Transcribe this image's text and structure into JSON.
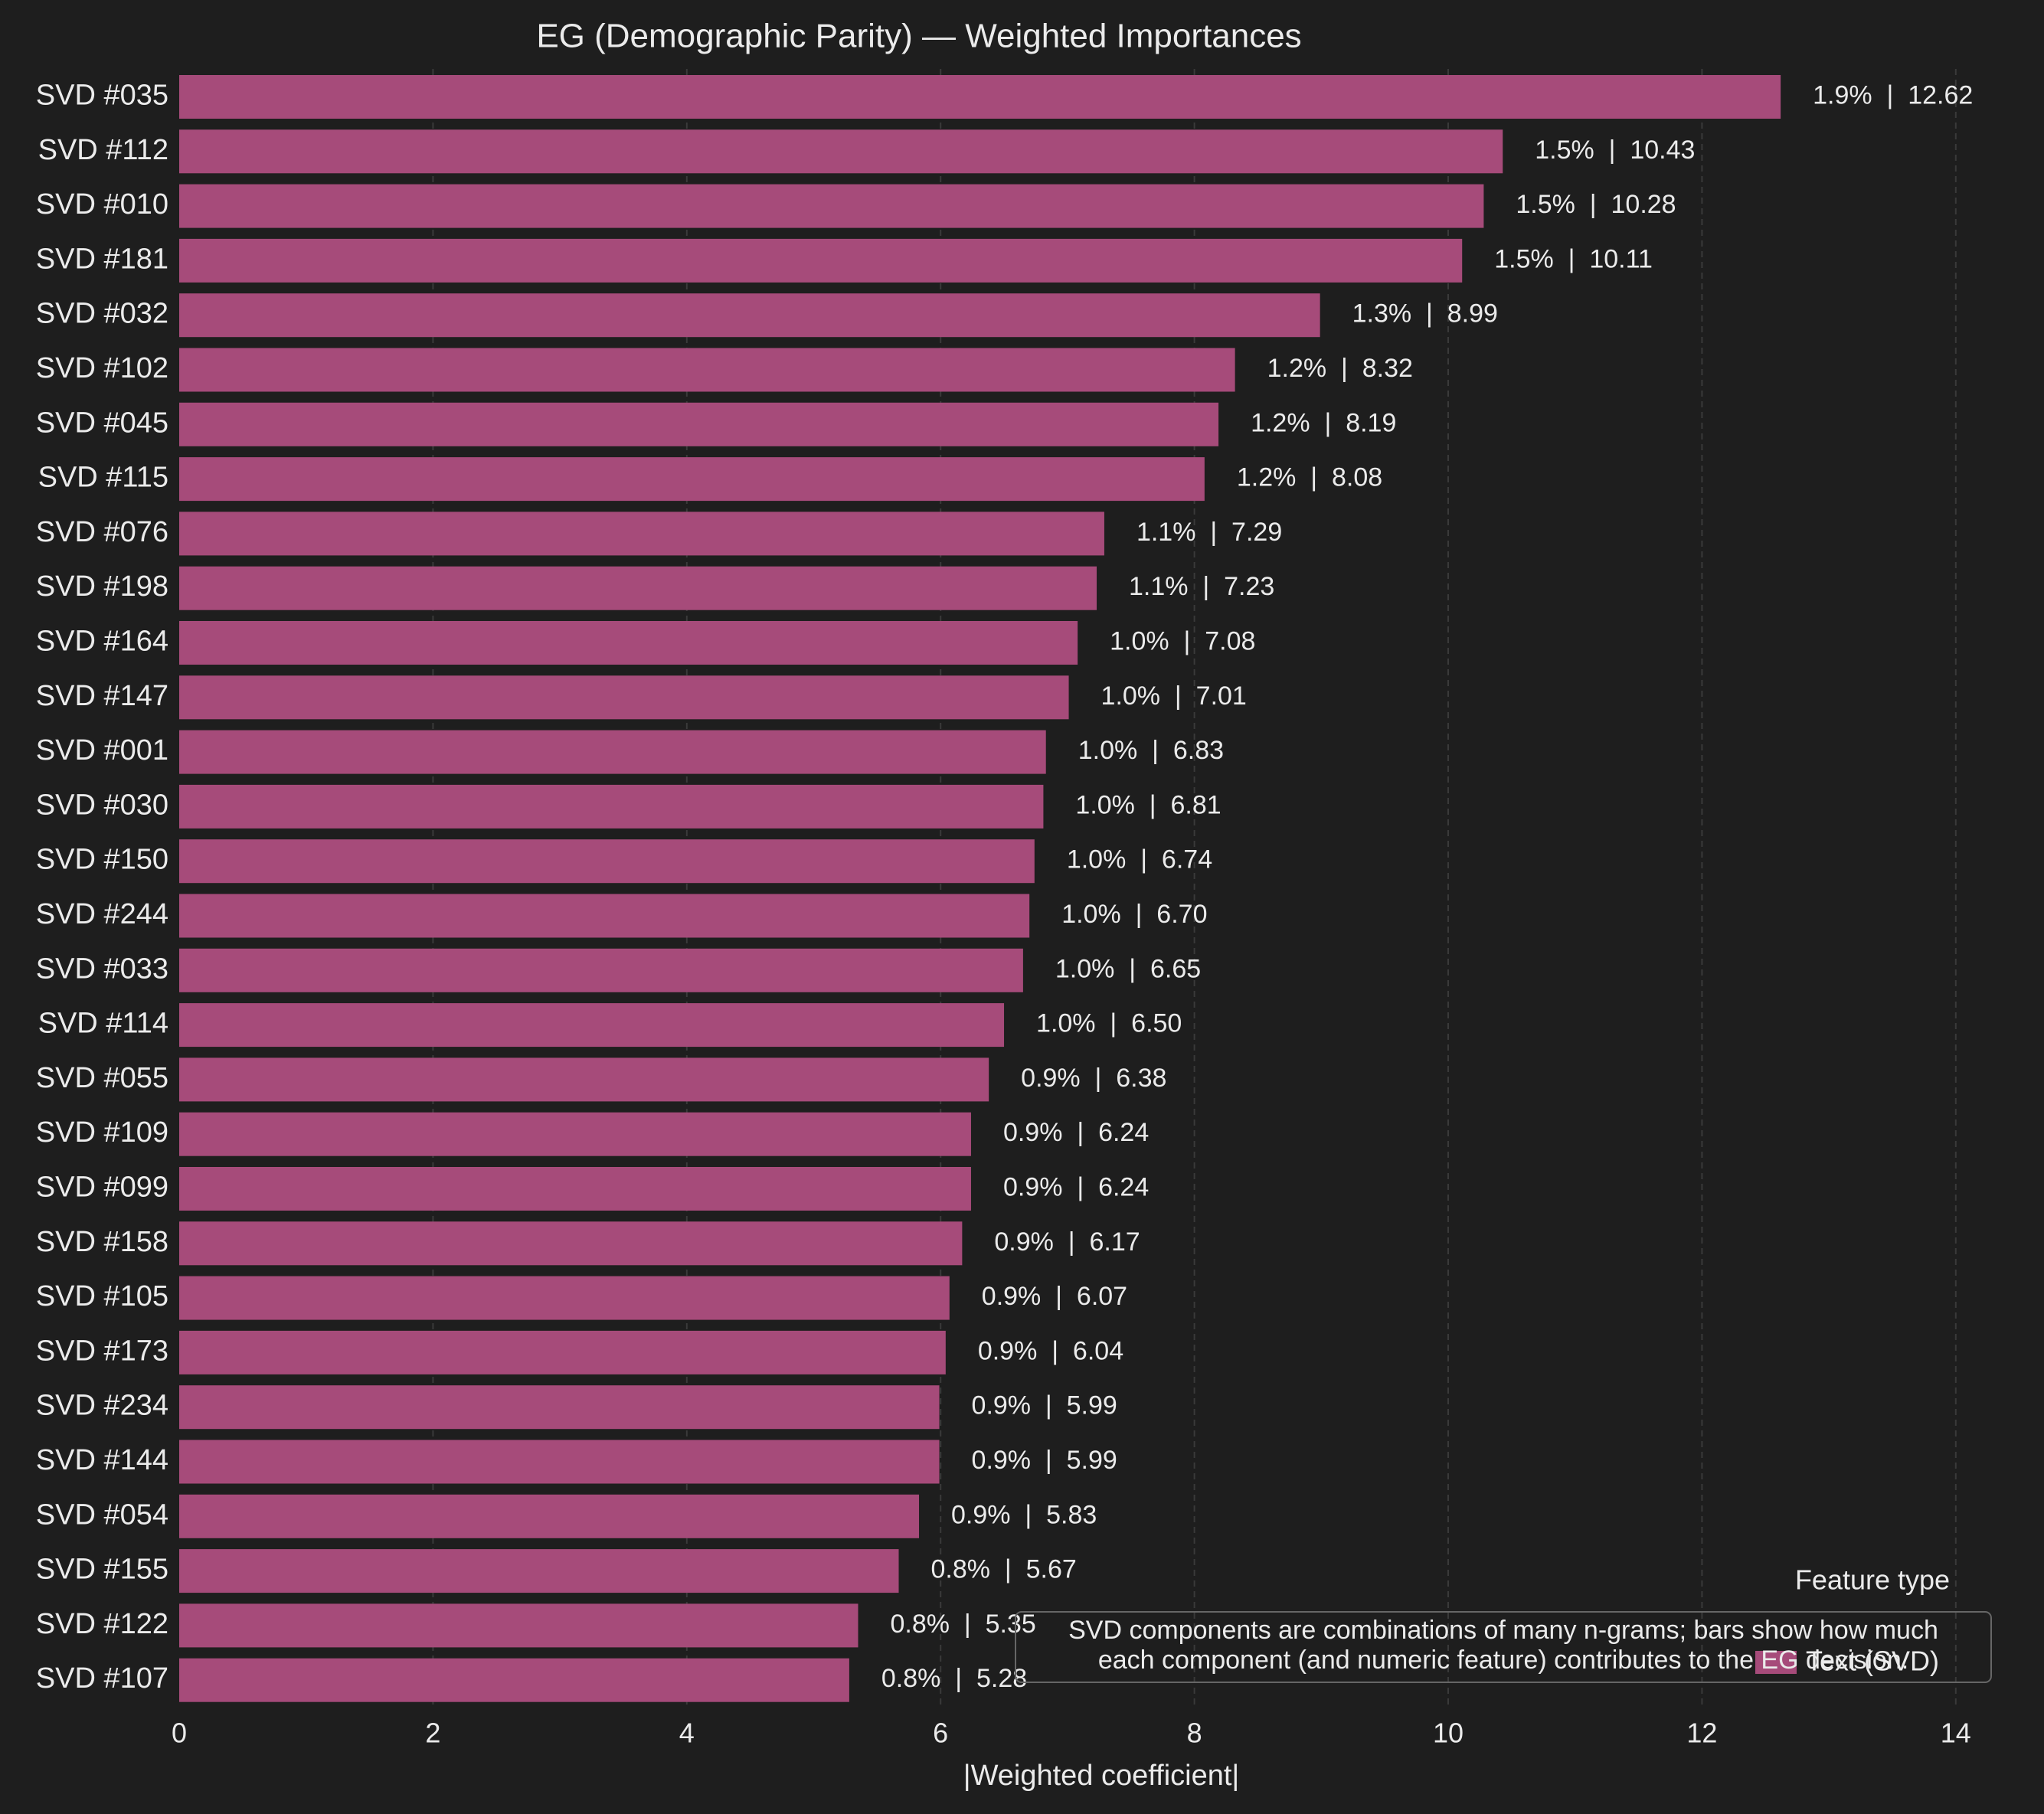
{
  "colors": {
    "background": "#1e1e1e",
    "bar": "#a64b7a",
    "text": "#ebebeb",
    "grid": "#3a3a3a",
    "annotation_border": "#666666"
  },
  "chart_data": {
    "type": "bar",
    "orientation": "horizontal",
    "title": "EG (Demographic Parity) — Weighted Importances",
    "xlabel": "|Weighted coefficient|",
    "ylabel": "",
    "xlim": [
      0,
      14.3
    ],
    "xticks": [
      0,
      2,
      4,
      6,
      8,
      10,
      12,
      14
    ],
    "grid": "vertical dashed",
    "categories": [
      "SVD #035",
      "SVD #112",
      "SVD #010",
      "SVD #181",
      "SVD #032",
      "SVD #102",
      "SVD #045",
      "SVD #115",
      "SVD #076",
      "SVD #198",
      "SVD #164",
      "SVD #147",
      "SVD #001",
      "SVD #030",
      "SVD #150",
      "SVD #244",
      "SVD #033",
      "SVD #114",
      "SVD #055",
      "SVD #109",
      "SVD #099",
      "SVD #158",
      "SVD #105",
      "SVD #173",
      "SVD #234",
      "SVD #144",
      "SVD #054",
      "SVD #155",
      "SVD #122",
      "SVD #107"
    ],
    "values": [
      12.62,
      10.43,
      10.28,
      10.11,
      8.99,
      8.32,
      8.19,
      8.08,
      7.29,
      7.23,
      7.08,
      7.01,
      6.83,
      6.81,
      6.74,
      6.7,
      6.65,
      6.5,
      6.38,
      6.24,
      6.24,
      6.17,
      6.07,
      6.04,
      5.99,
      5.99,
      5.83,
      5.67,
      5.35,
      5.28
    ],
    "bar_labels": [
      "1.9%  |  12.62",
      "1.5%  |  10.43",
      "1.5%  |  10.28",
      "1.5%  |  10.11",
      "1.3%  |  8.99",
      "1.2%  |  8.32",
      "1.2%  |  8.19",
      "1.2%  |  8.08",
      "1.1%  |  7.29",
      "1.1%  |  7.23",
      "1.0%  |  7.08",
      "1.0%  |  7.01",
      "1.0%  |  6.83",
      "1.0%  |  6.81",
      "1.0%  |  6.74",
      "1.0%  |  6.70",
      "1.0%  |  6.65",
      "1.0%  |  6.50",
      "0.9%  |  6.38",
      "0.9%  |  6.24",
      "0.9%  |  6.24",
      "0.9%  |  6.17",
      "0.9%  |  6.07",
      "0.9%  |  6.04",
      "0.9%  |  5.99",
      "0.9%  |  5.99",
      "0.9%  |  5.83",
      "0.8%  |  5.67",
      "0.8%  |  5.35",
      "0.8%  |  5.28"
    ],
    "legend": {
      "title": "Feature type",
      "entries": [
        "Text (SVD)"
      ],
      "placement": "lower-right"
    },
    "annotation": {
      "lines": [
        "SVD components are combinations of many n-grams; bars show how much",
        "each component (and numeric feature) contributes to the EG decision."
      ],
      "placement": "lower-right"
    }
  }
}
